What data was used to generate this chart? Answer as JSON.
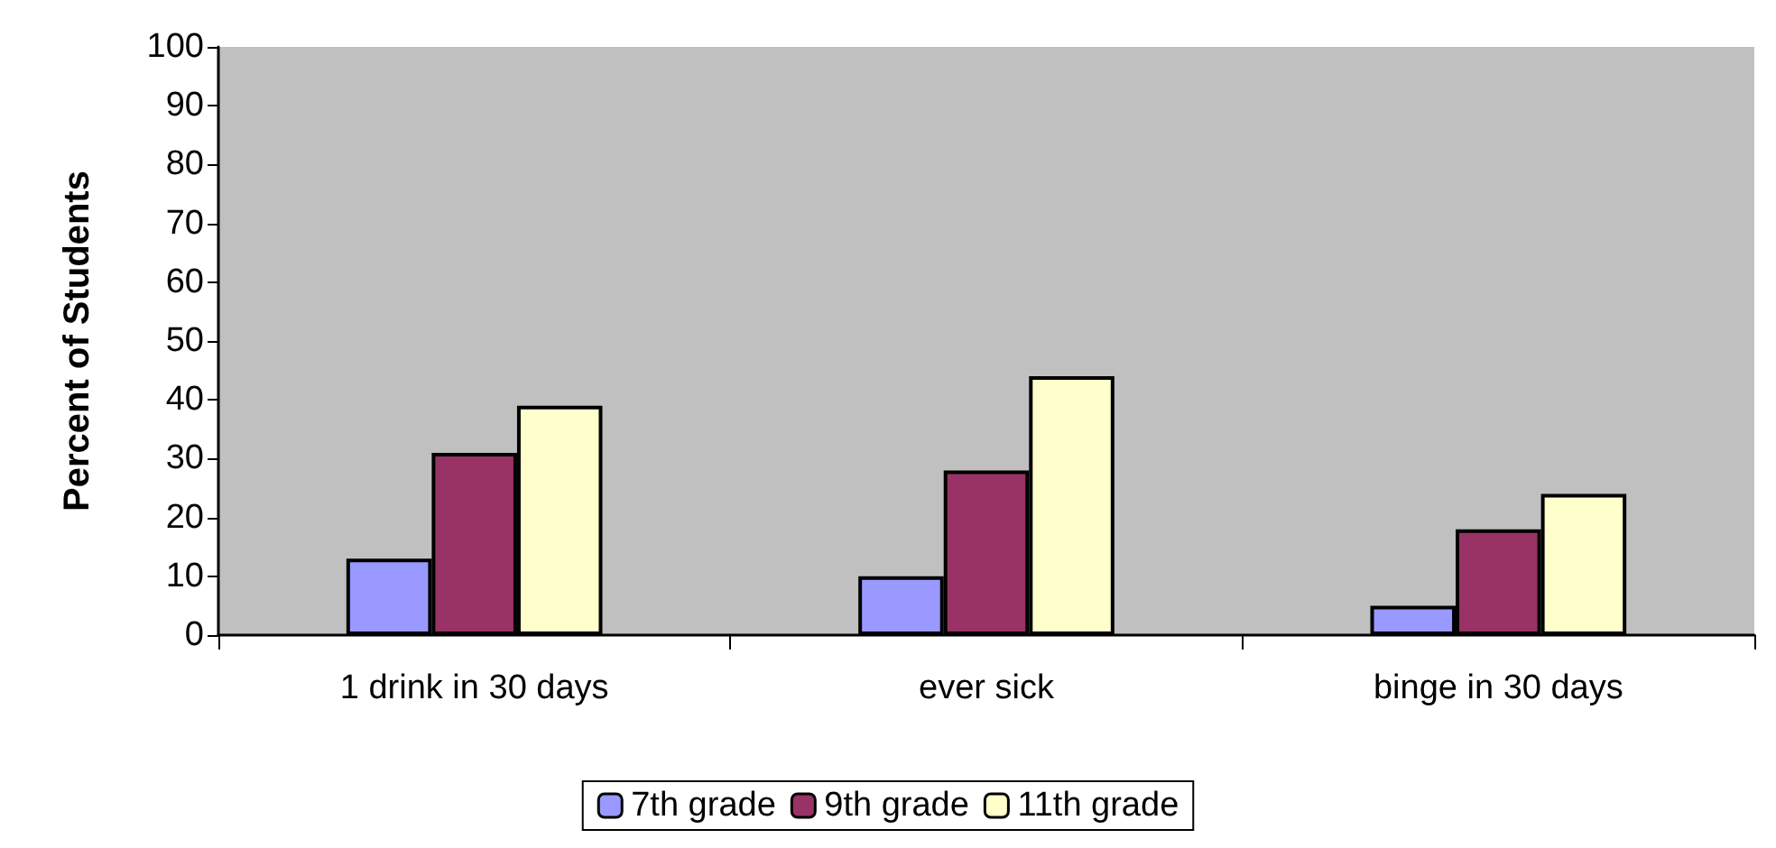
{
  "chart_data": {
    "type": "bar",
    "ylabel": "Percent of Students",
    "categories": [
      "1 drink in 30 days",
      "ever sick",
      "binge in 30 days"
    ],
    "series": [
      {
        "name": "7th grade",
        "color": "#9999ff",
        "values": [
          13,
          10,
          5
        ]
      },
      {
        "name": "9th grade",
        "color": "#993366",
        "values": [
          31,
          28,
          18
        ]
      },
      {
        "name": "11th grade",
        "color": "#ffffcc",
        "values": [
          39,
          44,
          24
        ]
      }
    ],
    "ylim": [
      0,
      100
    ],
    "yticks": [
      0,
      10,
      20,
      30,
      40,
      50,
      60,
      70,
      80,
      90,
      100
    ],
    "grid": false,
    "legend": "bottom"
  }
}
